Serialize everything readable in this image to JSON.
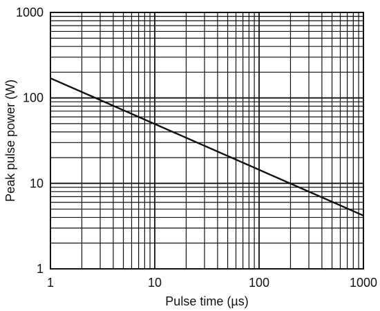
{
  "chart_data": {
    "type": "line",
    "xlabel": "Pulse time (µs)",
    "ylabel": "Peak pulse power (W)",
    "x_scale": "log",
    "y_scale": "log",
    "xlim": [
      1,
      1000
    ],
    "ylim": [
      1,
      1000
    ],
    "x_ticks": [
      1,
      10,
      100,
      1000
    ],
    "x_tick_labels": [
      "1",
      "10",
      "100",
      "1000"
    ],
    "y_ticks": [
      1,
      10,
      100,
      1000
    ],
    "y_tick_labels": [
      "1",
      "10",
      "100",
      "1000"
    ],
    "grid": true,
    "series": [
      {
        "x": [
          1,
          1000
        ],
        "y": [
          170,
          4.2
        ]
      }
    ]
  }
}
